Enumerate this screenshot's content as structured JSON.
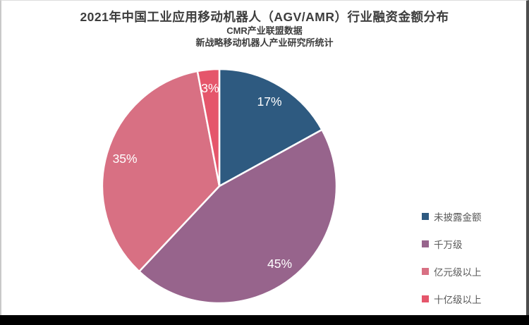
{
  "header": {
    "title": "2021年中国工业应用移动机器人（AGV/AMR）行业融资金额分布",
    "subtitle1": "CMR产业联盟数据",
    "subtitle2": "新战略移动机器人产业研究所统计"
  },
  "chart_data": {
    "type": "pie",
    "title": "2021年中国工业应用移动机器人（AGV/AMR）行业融资金额分布",
    "source_note_1": "CMR产业联盟数据",
    "source_note_2": "新战略移动机器人产业研究所统计",
    "direction": "clockwise",
    "start_angle_deg": 0,
    "legend_position": "right",
    "label_radius_frac": 0.84,
    "slices": [
      {
        "label": "未披露金额",
        "value_pct": 17,
        "data_label": "17%",
        "color": "#2e5a80"
      },
      {
        "label": "千万级",
        "value_pct": 45,
        "data_label": "45%",
        "color": "#97648c"
      },
      {
        "label": "亿元级以上",
        "value_pct": 35,
        "data_label": "35%",
        "color": "#d87083"
      },
      {
        "label": "十亿级以上",
        "value_pct": 3,
        "data_label": "3%",
        "color": "#e5566b"
      }
    ]
  },
  "colors": {
    "title_text": "#3d3d3d",
    "legend_text": "#595959",
    "slice_label_text": "#ffffff",
    "slice_separator": "#ffffff",
    "bottom_bar": "#000000"
  }
}
